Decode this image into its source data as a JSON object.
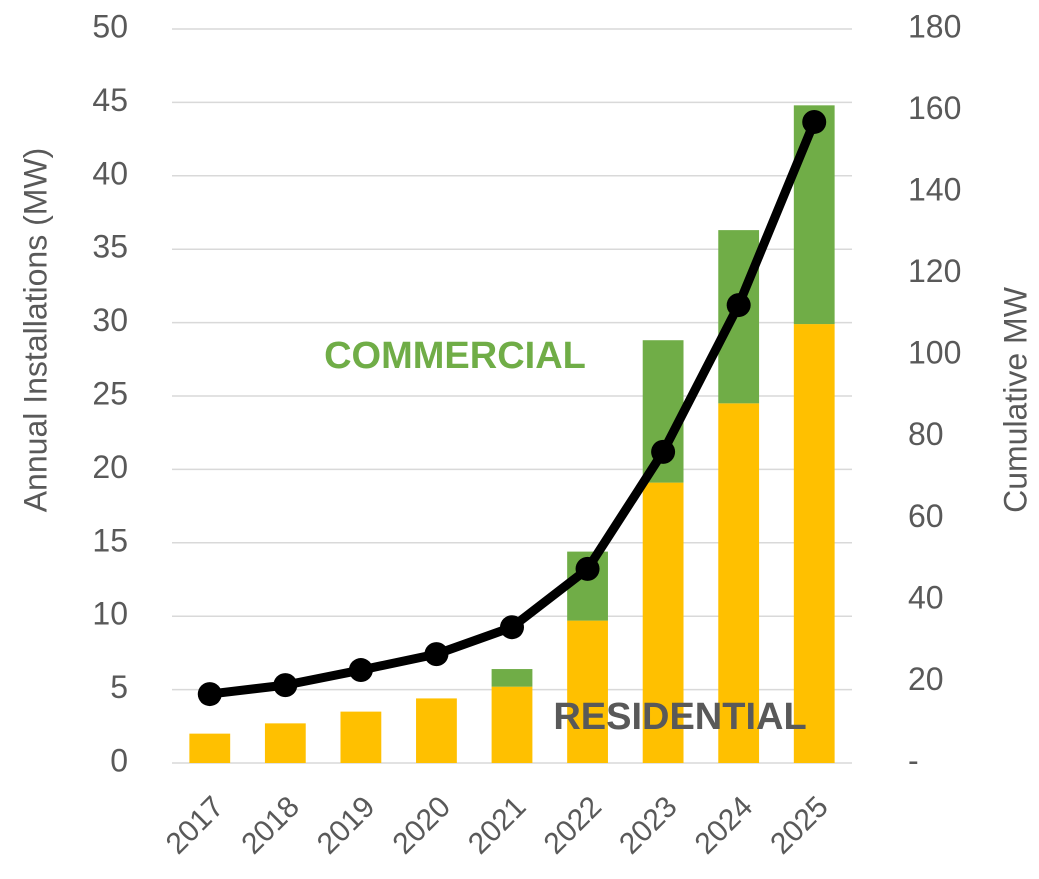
{
  "chart_data": {
    "type": "bar",
    "ylabel": "Annual Installations (MW)",
    "y2label": "Cumulative MW",
    "categories": [
      "2017",
      "2018",
      "2019",
      "2020",
      "2021",
      "2022",
      "2023",
      "2024",
      "2025"
    ],
    "series": [
      {
        "name": "RESIDENTIAL",
        "color": "#FFC000",
        "stacked": true,
        "values": [
          2.0,
          2.7,
          3.5,
          4.4,
          5.2,
          9.7,
          19.1,
          24.5,
          29.9
        ]
      },
      {
        "name": "COMMERCIAL",
        "color": "#70AD47",
        "stacked": true,
        "values": [
          0,
          0,
          0,
          0,
          1.2,
          4.7,
          9.7,
          11.8,
          14.9
        ]
      },
      {
        "type": "line",
        "axis": "y2",
        "color": "#000000",
        "values": [
          16.9,
          19.1,
          22.8,
          26.7,
          33.3,
          47.6,
          76.3,
          112.3,
          157.2
        ]
      }
    ],
    "ylim": [
      0,
      50
    ],
    "yticks": [
      0,
      5,
      10,
      15,
      20,
      25,
      30,
      35,
      40,
      45,
      50
    ],
    "y2lim": [
      0,
      180
    ],
    "y2ticks": [
      {
        "value": 0,
        "label": "-"
      },
      20,
      40,
      60,
      80,
      100,
      120,
      140,
      160,
      180
    ],
    "grid": true
  }
}
